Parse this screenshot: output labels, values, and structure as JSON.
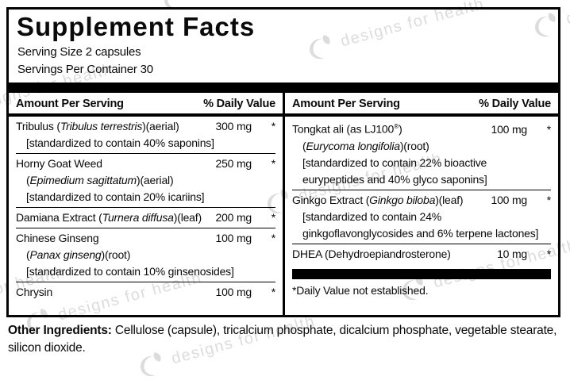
{
  "title": "Supplement Facts",
  "serving_size": "Serving Size 2 capsules",
  "servings_per_container": "Servings Per Container 30",
  "header": {
    "amount": "Amount Per Serving",
    "dv": "% Daily Value"
  },
  "columns": [
    {
      "rows": [
        {
          "name": [
            {
              "t": "Tribulus ("
            },
            {
              "t": "Tribulus terrestris",
              "i": true
            },
            {
              "t": ")(aerial)"
            }
          ],
          "amount": "300 mg",
          "dv": "*",
          "subs": [
            [
              {
                "t": "[standardized to contain 40% saponins]"
              }
            ]
          ]
        },
        {
          "name": [
            {
              "t": "Horny Goat Weed"
            }
          ],
          "amount": "250 mg",
          "dv": "*",
          "subs": [
            [
              {
                "t": "("
              },
              {
                "t": "Epimedium sagittatum",
                "i": true
              },
              {
                "t": ")(aerial)"
              }
            ],
            [
              {
                "t": "[standardized to contain 20% icariins]"
              }
            ]
          ]
        },
        {
          "name": [
            {
              "t": "Damiana Extract ("
            },
            {
              "t": "Turnera diffusa",
              "i": true
            },
            {
              "t": ")(leaf)"
            }
          ],
          "amount": "200 mg",
          "dv": "*",
          "subs": []
        },
        {
          "name": [
            {
              "t": "Chinese Ginseng"
            }
          ],
          "amount": "100 mg",
          "dv": "*",
          "subs": [
            [
              {
                "t": "("
              },
              {
                "t": "Panax ginseng",
                "i": true
              },
              {
                "t": ")(root)"
              }
            ],
            [
              {
                "t": "[standardized to contain 10% ginsenosides]"
              }
            ]
          ]
        },
        {
          "name": [
            {
              "t": "Chrysin"
            }
          ],
          "amount": "100 mg",
          "dv": "*",
          "subs": []
        }
      ]
    },
    {
      "rows": [
        {
          "name": [
            {
              "t": "Tongkat ali (as LJ100"
            },
            {
              "t": "®",
              "sup": true
            },
            {
              "t": ")"
            }
          ],
          "amount": "100 mg",
          "dv": "*",
          "subs": [
            [
              {
                "t": "("
              },
              {
                "t": "Eurycoma longifolia",
                "i": true
              },
              {
                "t": ")(root)"
              }
            ],
            [
              {
                "t": "[standardized to contain 22% bioactive"
              }
            ],
            [
              {
                "t": "eurypeptides and 40% glyco saponins]"
              }
            ]
          ]
        },
        {
          "name": [
            {
              "t": "Ginkgo Extract ("
            },
            {
              "t": "Ginkgo biloba",
              "i": true
            },
            {
              "t": ")(leaf)"
            }
          ],
          "amount": "100 mg",
          "dv": "*",
          "subs": [
            [
              {
                "t": "[standardized to contain 24%"
              }
            ],
            [
              {
                "t": "ginkgoflavonglycosides and 6% terpene lactones]"
              }
            ]
          ]
        },
        {
          "name": [
            {
              "t": "DHEA (Dehydroepiandrosterone)"
            }
          ],
          "amount": "10 mg",
          "dv": "*",
          "subs": []
        }
      ]
    }
  ],
  "footnote": "*Daily Value not established.",
  "other_ingredients": {
    "label": "Other Ingredients:",
    "text": " Cellulose (capsule), tricalcium phosphate, dicalcium phosphate, vegetable stearate, silicon dioxide."
  },
  "watermark": {
    "text": "designs for health"
  },
  "colors": {
    "ink": "#000000",
    "watermark": "#dcdcdc"
  }
}
